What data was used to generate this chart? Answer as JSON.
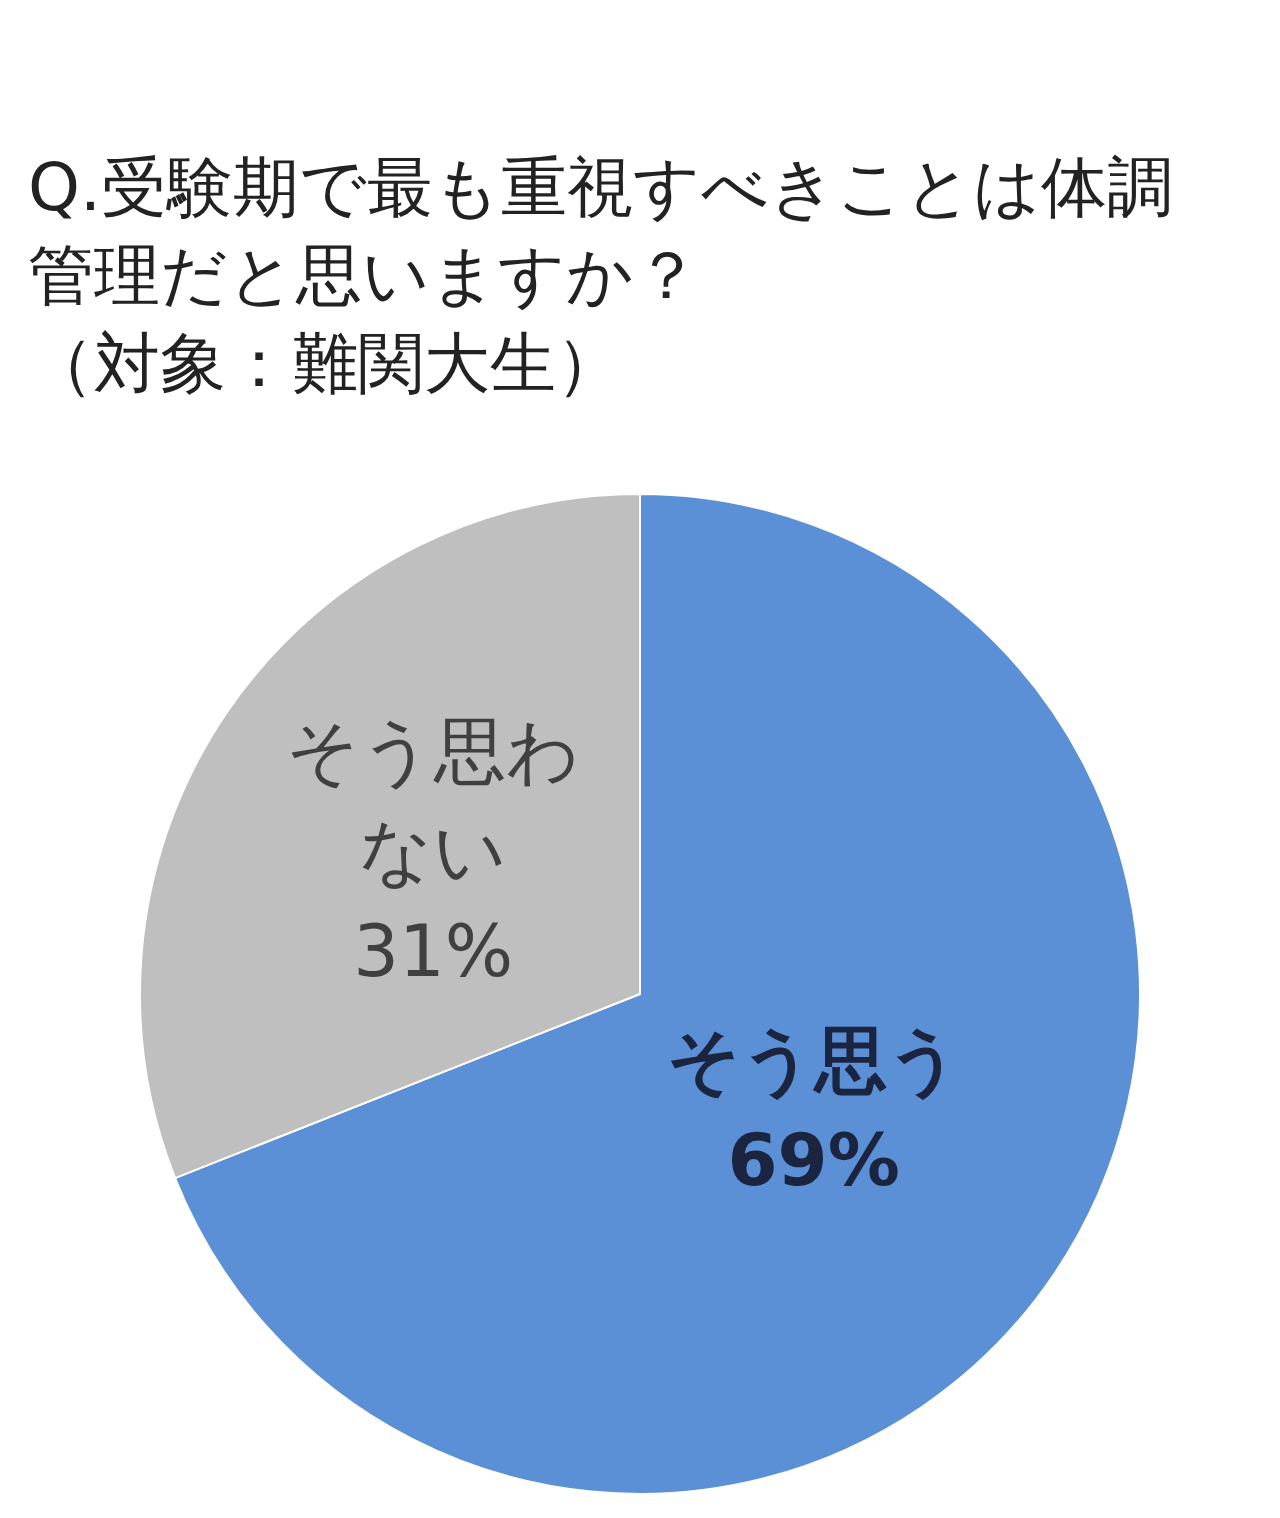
{
  "chart_data": {
    "type": "pie",
    "title": "Q.受験期で最も重視すべきことは体調管理だと思いますか？",
    "subtitle": "（対象：難関大生）",
    "categories": [
      "そう思う",
      "そう思わない"
    ],
    "values": [
      69,
      31
    ],
    "value_labels": [
      "69%",
      "31%"
    ],
    "colors": [
      "#5b8fd6",
      "#bfbfbf"
    ]
  }
}
